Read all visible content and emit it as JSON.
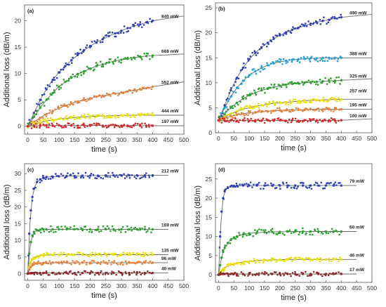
{
  "chart_data": [
    {
      "type": "scatter",
      "panel": "(a)",
      "xlabel": "time (s)",
      "ylabel": "Additional loss (dB/m)",
      "xlim": [
        -10,
        500
      ],
      "ylim": [
        -1.5,
        23
      ],
      "xticks": [
        0,
        50,
        100,
        150,
        200,
        250,
        300,
        350,
        400,
        450,
        500
      ],
      "yticks": [
        0,
        5,
        10,
        15,
        20
      ],
      "fit_x_end": 500,
      "series": [
        {
          "name": "840 mW",
          "color": "#2e3fb8",
          "x": [
            0,
            20,
            40,
            60,
            80,
            100,
            120,
            140,
            160,
            180,
            200,
            220,
            240,
            260,
            280,
            300,
            320,
            340,
            360,
            380,
            400
          ],
          "y": [
            0,
            2.5,
            5.0,
            7.0,
            8.8,
            10.2,
            11.4,
            12.5,
            13.5,
            14.4,
            15.2,
            15.9,
            16.5,
            17.1,
            17.6,
            18.1,
            18.6,
            19.0,
            19.3,
            19.7,
            20.0
          ]
        },
        {
          "name": "668 mW",
          "color": "#2ca02c",
          "x": [
            0,
            20,
            40,
            60,
            80,
            100,
            120,
            140,
            160,
            180,
            200,
            220,
            240,
            260,
            280,
            300,
            320,
            340,
            360,
            380,
            400
          ],
          "y": [
            0,
            1.8,
            3.5,
            5.0,
            6.3,
            7.5,
            8.4,
            9.2,
            9.9,
            10.4,
            10.9,
            11.4,
            11.7,
            12.1,
            12.4,
            12.6,
            12.8,
            13.0,
            13.2,
            13.3,
            13.4
          ]
        },
        {
          "name": "552 mW",
          "color": "#e8823a",
          "x": [
            0,
            20,
            40,
            60,
            80,
            100,
            120,
            140,
            160,
            180,
            200,
            220,
            240,
            260,
            280,
            300,
            320,
            340,
            360,
            380,
            400
          ],
          "y": [
            0,
            0.8,
            1.6,
            2.3,
            2.9,
            3.4,
            3.9,
            4.3,
            4.7,
            5.0,
            5.3,
            5.6,
            5.8,
            6.0,
            6.2,
            6.4,
            6.6,
            6.8,
            7.0,
            7.2,
            7.5
          ]
        },
        {
          "name": "444 mW",
          "color": "#e8e000",
          "x": [
            0,
            20,
            40,
            60,
            80,
            100,
            120,
            140,
            160,
            180,
            200,
            220,
            240,
            260,
            280,
            300,
            320,
            340,
            360,
            380,
            400
          ],
          "y": [
            0,
            0.4,
            0.7,
            1.0,
            1.2,
            1.4,
            1.5,
            1.6,
            1.7,
            1.8,
            1.85,
            1.9,
            1.95,
            2.0,
            2.0,
            2.05,
            2.05,
            2.1,
            2.1,
            2.1,
            2.1
          ]
        },
        {
          "name": "197 mW",
          "color": "#d62728",
          "x": [
            0,
            20,
            40,
            60,
            80,
            100,
            120,
            140,
            160,
            180,
            200,
            220,
            240,
            260,
            280,
            300,
            320,
            340,
            360,
            380,
            400
          ],
          "y": [
            0,
            0.1,
            0.1,
            0.2,
            0.1,
            0.2,
            0.1,
            0.2,
            0.1,
            0.2,
            0.1,
            0.2,
            0.1,
            0.1,
            0.2,
            0.1,
            0.1,
            0.2,
            0.1,
            0.1,
            0.1
          ]
        }
      ]
    },
    {
      "type": "scatter",
      "panel": "(b)",
      "xlabel": "time (s)",
      "ylabel": "Additional loss (dB/m)",
      "xlim": [
        -10,
        500
      ],
      "ylim": [
        0,
        26
      ],
      "xticks": [
        0,
        50,
        100,
        150,
        200,
        250,
        300,
        350,
        400,
        450,
        500
      ],
      "yticks": [
        0,
        5,
        10,
        15,
        20,
        25
      ],
      "fit_x_end": 500,
      "series": [
        {
          "name": "490 mW",
          "color": "#2e3fb8",
          "x": [
            0,
            20,
            40,
            60,
            80,
            100,
            120,
            140,
            160,
            180,
            200,
            220,
            240,
            260,
            280,
            300,
            320,
            340,
            360,
            380,
            400
          ],
          "y": [
            2.5,
            5.5,
            8.5,
            11.0,
            13.0,
            14.7,
            16.0,
            17.1,
            18.0,
            18.8,
            19.5,
            20.1,
            20.6,
            21.0,
            21.4,
            21.8,
            22.1,
            22.4,
            22.6,
            22.9,
            23.1
          ]
        },
        {
          "name": "388 mW",
          "color": "#1fa3d6",
          "x": [
            0,
            20,
            40,
            60,
            80,
            100,
            120,
            140,
            160,
            180,
            200,
            220,
            240,
            260,
            280,
            300,
            320,
            340,
            360,
            380,
            400
          ],
          "y": [
            2.5,
            5.0,
            7.2,
            9.0,
            10.4,
            11.5,
            12.3,
            13.0,
            13.5,
            13.9,
            14.2,
            14.4,
            14.6,
            14.7,
            14.8,
            14.9,
            14.9,
            15.0,
            15.0,
            15.0,
            15.0
          ]
        },
        {
          "name": "325 mW",
          "color": "#2ca02c",
          "x": [
            0,
            20,
            40,
            60,
            80,
            100,
            120,
            140,
            160,
            180,
            200,
            220,
            240,
            260,
            280,
            300,
            320,
            340,
            360,
            380,
            400
          ],
          "y": [
            2.5,
            3.8,
            5.0,
            6.0,
            6.8,
            7.5,
            8.0,
            8.5,
            8.8,
            9.1,
            9.4,
            9.6,
            9.8,
            9.9,
            10.0,
            10.1,
            10.2,
            10.3,
            10.4,
            10.4,
            10.5
          ]
        },
        {
          "name": "257 mW",
          "color": "#e8e000",
          "x": [
            0,
            20,
            40,
            60,
            80,
            100,
            120,
            140,
            160,
            180,
            200,
            220,
            240,
            260,
            280,
            300,
            320,
            340,
            360,
            380,
            400
          ],
          "y": [
            2.5,
            3.2,
            3.8,
            4.3,
            4.7,
            5.0,
            5.3,
            5.5,
            5.7,
            5.9,
            6.0,
            6.1,
            6.2,
            6.3,
            6.4,
            6.5,
            6.5,
            6.6,
            6.6,
            6.7,
            6.7
          ]
        },
        {
          "name": "195 mW",
          "color": "#e8823a",
          "x": [
            0,
            20,
            40,
            60,
            80,
            100,
            120,
            140,
            160,
            180,
            200,
            220,
            240,
            260,
            280,
            300,
            320,
            340,
            360,
            380,
            400
          ],
          "y": [
            2.5,
            2.9,
            3.3,
            3.6,
            3.8,
            4.0,
            4.1,
            4.2,
            4.3,
            4.4,
            4.5,
            4.5,
            4.6,
            4.6,
            4.6,
            4.7,
            4.7,
            4.7,
            4.7,
            4.7,
            4.7
          ]
        },
        {
          "name": "100 mW",
          "color": "#d62728",
          "x": [
            0,
            20,
            40,
            60,
            80,
            100,
            120,
            140,
            160,
            180,
            200,
            220,
            240,
            260,
            280,
            300,
            320,
            340,
            360,
            380,
            400
          ],
          "y": [
            2.5,
            2.4,
            2.5,
            2.4,
            2.5,
            2.4,
            2.5,
            2.4,
            2.5,
            2.4,
            2.5,
            2.4,
            2.5,
            2.4,
            2.5,
            2.4,
            2.5,
            2.4,
            2.5,
            2.4,
            2.5
          ]
        }
      ]
    },
    {
      "type": "scatter",
      "panel": "(c)",
      "xlabel": "time (s)",
      "ylabel": "Additional loss (dB/m)",
      "xlim": [
        -10,
        500
      ],
      "ylim": [
        -2,
        33
      ],
      "xticks": [
        0,
        50,
        100,
        150,
        200,
        250,
        300,
        350,
        400,
        450,
        500
      ],
      "yticks": [
        0,
        5,
        10,
        15,
        20,
        25,
        30
      ],
      "fit_x_end": 450,
      "series": [
        {
          "name": "212 mW",
          "color": "#2e3fb8",
          "x": [
            0,
            5,
            10,
            15,
            20,
            30,
            40,
            50,
            60,
            80,
            100,
            125,
            150,
            175,
            200,
            225,
            250,
            275,
            300,
            325,
            350,
            375,
            400
          ],
          "y": [
            0,
            12.0,
            19.0,
            23.0,
            25.5,
            27.5,
            28.3,
            28.8,
            29.0,
            29.1,
            29.2,
            29.3,
            29.3,
            29.4,
            29.4,
            29.4,
            29.5,
            29.5,
            29.5,
            29.5,
            29.5,
            29.5,
            29.5
          ]
        },
        {
          "name": "169 mW",
          "color": "#2ca02c",
          "x": [
            0,
            5,
            10,
            15,
            20,
            30,
            40,
            50,
            60,
            80,
            100,
            125,
            150,
            175,
            200,
            225,
            250,
            275,
            300,
            325,
            350,
            375,
            400
          ],
          "y": [
            0,
            6.0,
            9.5,
            11.5,
            12.5,
            13.0,
            13.2,
            13.3,
            13.3,
            13.3,
            13.3,
            13.3,
            13.3,
            13.3,
            13.3,
            13.3,
            13.3,
            13.3,
            13.3,
            13.3,
            13.3,
            13.3,
            13.3
          ]
        },
        {
          "name": "135 mW",
          "color": "#e8e000",
          "x": [
            0,
            5,
            10,
            15,
            20,
            30,
            40,
            50,
            60,
            80,
            100,
            125,
            150,
            175,
            200,
            225,
            250,
            275,
            300,
            325,
            350,
            375,
            400
          ],
          "y": [
            0,
            2.0,
            3.5,
            4.3,
            4.8,
            5.2,
            5.4,
            5.5,
            5.6,
            5.6,
            5.7,
            5.7,
            5.7,
            5.7,
            5.7,
            5.7,
            5.7,
            5.7,
            5.7,
            5.7,
            5.7,
            5.7,
            5.7
          ]
        },
        {
          "name": "96 mW",
          "color": "#e8823a",
          "x": [
            0,
            5,
            10,
            15,
            20,
            30,
            40,
            50,
            60,
            80,
            100,
            125,
            150,
            175,
            200,
            225,
            250,
            275,
            300,
            325,
            350,
            375,
            400
          ],
          "y": [
            0,
            1.2,
            2.0,
            2.5,
            2.8,
            3.0,
            3.1,
            3.2,
            3.2,
            3.3,
            3.3,
            3.3,
            3.3,
            3.3,
            3.3,
            3.3,
            3.3,
            3.3,
            3.3,
            3.3,
            3.3,
            3.3,
            3.3
          ]
        },
        {
          "name": "40 mW",
          "color": "#8b2d2d",
          "x": [
            0,
            5,
            10,
            15,
            20,
            30,
            40,
            50,
            60,
            80,
            100,
            125,
            150,
            175,
            200,
            225,
            250,
            275,
            300,
            325,
            350,
            375,
            400
          ],
          "y": [
            0,
            0.1,
            0.2,
            0.2,
            0.2,
            0.2,
            0.2,
            0.2,
            0.2,
            0.2,
            0.2,
            0.2,
            0.2,
            0.2,
            0.2,
            0.2,
            0.2,
            0.2,
            0.2,
            0.2,
            0.2,
            0.2,
            0.2
          ]
        }
      ]
    },
    {
      "type": "scatter",
      "panel": "(d)",
      "xlabel": "time (s)",
      "ylabel": "Additional loss (dB/m)",
      "xlim": [
        -10,
        500
      ],
      "ylim": [
        -2,
        29
      ],
      "xticks": [
        0,
        50,
        100,
        150,
        200,
        250,
        300,
        350,
        400,
        450,
        500
      ],
      "yticks": [
        0,
        5,
        10,
        15,
        20,
        25
      ],
      "fit_x_end": 450,
      "series": [
        {
          "name": "79 mW",
          "color": "#2e3fb8",
          "x": [
            0,
            5,
            10,
            15,
            20,
            30,
            40,
            50,
            60,
            80,
            100,
            125,
            150,
            175,
            200,
            225,
            250,
            275,
            300,
            325,
            350,
            375,
            400
          ],
          "y": [
            0,
            10.0,
            16.5,
            20.0,
            21.8,
            22.8,
            23.1,
            23.2,
            23.2,
            23.3,
            23.3,
            23.3,
            23.3,
            23.3,
            23.3,
            23.3,
            23.3,
            23.3,
            23.3,
            23.3,
            23.3,
            23.3,
            23.3
          ]
        },
        {
          "name": "60 mW",
          "color": "#2ca02c",
          "x": [
            0,
            5,
            10,
            15,
            20,
            30,
            40,
            50,
            60,
            80,
            100,
            125,
            150,
            175,
            200,
            225,
            250,
            275,
            300,
            325,
            350,
            375,
            400
          ],
          "y": [
            0,
            2.5,
            4.5,
            6.0,
            7.0,
            8.3,
            9.1,
            9.6,
            10.0,
            10.5,
            10.8,
            11.0,
            11.1,
            11.2,
            11.2,
            11.3,
            11.3,
            11.3,
            11.3,
            11.3,
            11.3,
            11.3,
            11.3
          ]
        },
        {
          "name": "46 mW",
          "color": "#e8e000",
          "x": [
            0,
            5,
            10,
            15,
            20,
            30,
            40,
            50,
            60,
            80,
            100,
            125,
            150,
            175,
            200,
            225,
            250,
            275,
            300,
            325,
            350,
            375,
            400
          ],
          "y": [
            0,
            0.6,
            1.1,
            1.5,
            1.8,
            2.3,
            2.6,
            2.8,
            3.0,
            3.3,
            3.5,
            3.7,
            3.8,
            3.9,
            3.9,
            4.0,
            4.0,
            4.0,
            4.0,
            4.0,
            4.0,
            4.0,
            4.0
          ]
        },
        {
          "name": "17 mW",
          "color": "#8b2d2d",
          "x": [
            0,
            5,
            10,
            15,
            20,
            30,
            40,
            50,
            60,
            80,
            100,
            125,
            150,
            175,
            200,
            225,
            250,
            275,
            300,
            325,
            350,
            375,
            400
          ],
          "y": [
            0,
            0.1,
            0.2,
            0.2,
            0.2,
            0.2,
            0.2,
            0.2,
            0.2,
            0.2,
            0.2,
            0.2,
            0.2,
            0.2,
            0.2,
            0.2,
            0.2,
            0.2,
            0.2,
            0.2,
            0.2,
            0.2,
            0.2
          ]
        }
      ]
    }
  ]
}
